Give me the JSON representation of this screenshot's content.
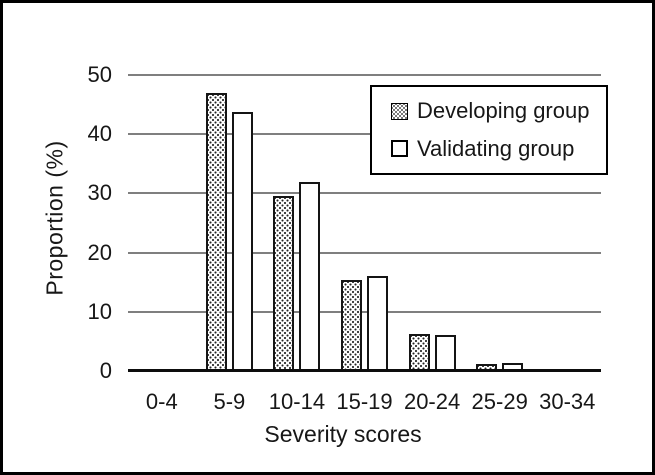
{
  "figure": {
    "colors": {
      "background": "#ffffff",
      "frame_border": "#000000",
      "gridline": "#7f7f7f",
      "axis_line": "#0d0d0d",
      "bar_border": "#141414",
      "pattern_dot": "#262626",
      "bar_fill_validating": "#ffffff"
    }
  },
  "chart_data": {
    "type": "bar",
    "title": "",
    "xlabel": "Severity scores",
    "ylabel": "Proportion (%)",
    "categories": [
      "0-4",
      "5-9",
      "10-14",
      "15-19",
      "20-24",
      "25-29",
      "30-34"
    ],
    "series": [
      {
        "name": "Developing group",
        "fill_style": "dotted-pattern",
        "values": [
          0.3,
          47.0,
          29.6,
          15.3,
          6.3,
          1.2,
          0.3
        ]
      },
      {
        "name": "Validating group",
        "fill_style": "white",
        "values": [
          0.4,
          43.7,
          32.0,
          16.0,
          6.0,
          1.3,
          0.0
        ]
      }
    ],
    "ylim": [
      0,
      50
    ],
    "yticks": [
      0,
      10,
      20,
      30,
      40,
      50
    ],
    "grid": true,
    "legend_position": "top-right-inside"
  }
}
